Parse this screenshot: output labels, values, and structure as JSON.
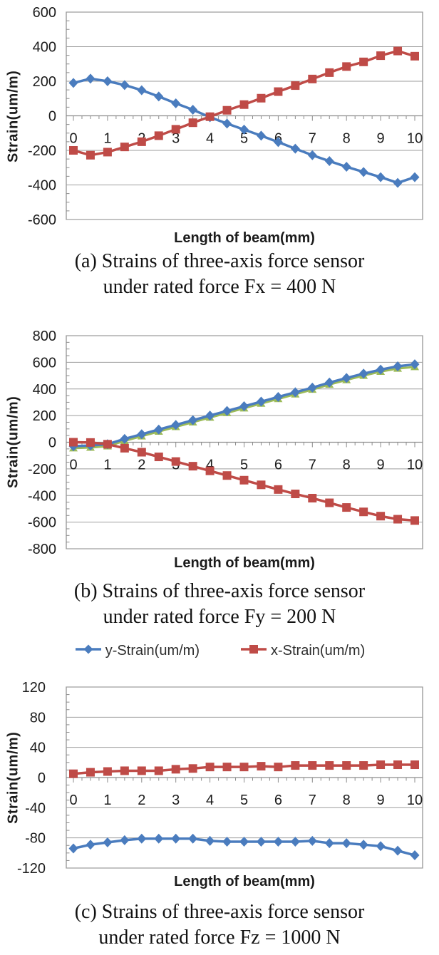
{
  "figure": {
    "background": "#ffffff"
  },
  "colors": {
    "y_strain_blue": "#4A7CBE",
    "x_strain_red": "#BF4B47",
    "unlabeled_green": "#9CBB58",
    "gridline": "#9E9E9E",
    "axis": "#8C8C8C",
    "tick_text": "#1c1c1c"
  },
  "legend": {
    "position": "between chart (b) and chart (c)",
    "items": [
      {
        "label": "y-Strain(um/m)",
        "marker": "diamond",
        "color": "#4A7CBE"
      },
      {
        "label": "x-Strain(um/m)",
        "marker": "square",
        "color": "#BF4B47"
      }
    ]
  },
  "chart_data": [
    {
      "id": "a",
      "type": "line",
      "caption": {
        "line1": "(a) Strains of three-axis force sensor",
        "line2": "under rated force Fx = 400 N"
      },
      "xlabel": "Length of beam(mm)",
      "ylabel": "Strain(um/m)",
      "ylim": [
        -600,
        600
      ],
      "yticks": [
        600,
        400,
        200,
        0,
        -200,
        -400,
        -600
      ],
      "xticks": [
        0,
        1,
        2,
        3,
        4,
        5,
        6,
        7,
        8,
        9,
        10
      ],
      "grid": true,
      "x": [
        0,
        0.5,
        1,
        1.5,
        2,
        2.5,
        3,
        3.5,
        4,
        4.5,
        5,
        5.5,
        6,
        6.5,
        7,
        7.5,
        8,
        8.5,
        9,
        9.5,
        10
      ],
      "series": [
        {
          "name": "y-Strain(um/m)",
          "marker": "diamond",
          "color": "#4A7CBE",
          "values": [
            190,
            215,
            200,
            178,
            148,
            112,
            72,
            35,
            -8,
            -45,
            -80,
            -115,
            -152,
            -190,
            -228,
            -262,
            -295,
            -325,
            -355,
            -388,
            -355
          ]
        },
        {
          "name": "x-Strain(um/m)",
          "marker": "square",
          "color": "#BF4B47",
          "values": [
            -200,
            -228,
            -210,
            -180,
            -150,
            -115,
            -78,
            -40,
            -5,
            32,
            65,
            102,
            140,
            175,
            213,
            250,
            285,
            312,
            348,
            375,
            345
          ]
        }
      ]
    },
    {
      "id": "b",
      "type": "line",
      "caption": {
        "line1": "(b) Strains of three-axis force sensor",
        "line2": "under rated force Fy = 200 N"
      },
      "xlabel": "Length of beam(mm)",
      "ylabel": "Strain(um/m)",
      "ylim": [
        -800,
        800
      ],
      "yticks": [
        800,
        600,
        400,
        200,
        0,
        -200,
        -400,
        -600,
        -800
      ],
      "xticks": [
        0,
        1,
        2,
        3,
        4,
        5,
        6,
        7,
        8,
        9,
        10
      ],
      "grid": true,
      "x": [
        0,
        0.5,
        1,
        1.5,
        2,
        2.5,
        3,
        3.5,
        4,
        4.5,
        5,
        5.5,
        6,
        6.5,
        7,
        7.5,
        8,
        8.5,
        9,
        9.5,
        10
      ],
      "series": [
        {
          "name": "unlabeled green series (triangle markers)",
          "marker": "triangle",
          "color": "#9CBB58",
          "values": [
            -45,
            -40,
            -30,
            10,
            45,
            80,
            115,
            150,
            185,
            220,
            255,
            290,
            325,
            360,
            395,
            433,
            467,
            500,
            530,
            553,
            565
          ]
        },
        {
          "name": "y-Strain(um/m)",
          "marker": "diamond",
          "color": "#4A7CBE",
          "values": [
            -30,
            -25,
            -15,
            25,
            60,
            95,
            130,
            165,
            200,
            235,
            270,
            305,
            340,
            375,
            410,
            448,
            482,
            515,
            545,
            570,
            585
          ]
        },
        {
          "name": "x-Strain(um/m)",
          "marker": "square",
          "color": "#BF4B47",
          "values": [
            0,
            -2,
            -15,
            -45,
            -75,
            -110,
            -145,
            -180,
            -215,
            -250,
            -285,
            -320,
            -355,
            -388,
            -420,
            -455,
            -490,
            -523,
            -555,
            -578,
            -588
          ]
        }
      ]
    },
    {
      "id": "c",
      "type": "line",
      "caption": {
        "line1": "(c) Strains of three-axis force sensor",
        "line2": "under rated force Fz = 1000 N"
      },
      "xlabel": "Length of beam(mm)",
      "ylabel": "Strain(um/m)",
      "ylim": [
        -120,
        120
      ],
      "yticks": [
        120,
        80,
        40,
        0,
        -40,
        -80,
        -120
      ],
      "xticks": [
        0,
        1,
        2,
        3,
        4,
        5,
        6,
        7,
        8,
        9,
        10
      ],
      "grid": true,
      "x": [
        0,
        0.5,
        1,
        1.5,
        2,
        2.5,
        3,
        3.5,
        4,
        4.5,
        5,
        5.5,
        6,
        6.5,
        7,
        7.5,
        8,
        8.5,
        9,
        9.5,
        10
      ],
      "series": [
        {
          "name": "y-Strain(um/m)",
          "marker": "diamond",
          "color": "#4A7CBE",
          "values": [
            -94,
            -89,
            -86,
            -83,
            -81,
            -81,
            -81,
            -81,
            -84,
            -85,
            -85,
            -85,
            -85,
            -85,
            -84,
            -87,
            -87,
            -89,
            -91,
            -97,
            -103
          ]
        },
        {
          "name": "x-Strain(um/m)",
          "marker": "square",
          "color": "#BF4B47",
          "values": [
            5,
            7,
            8,
            9,
            9,
            9,
            11,
            12,
            14,
            14,
            14,
            15,
            14,
            16,
            16,
            16,
            16,
            16,
            17,
            17,
            17
          ]
        }
      ]
    }
  ]
}
